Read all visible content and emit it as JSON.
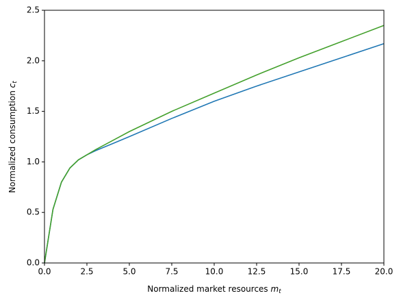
{
  "chart_data": {
    "type": "line",
    "x_label": {
      "text": "Normalized market resources ",
      "var": "m",
      "sub": "t"
    },
    "y_label": {
      "text": "Normalized consumption ",
      "var": "c",
      "sub": "t"
    },
    "x": [
      0,
      0.5,
      1,
      1.5,
      2,
      2.5,
      3,
      4,
      5,
      7.5,
      10,
      12.5,
      15,
      17.5,
      20
    ],
    "series": [
      {
        "color": "#1f77b4",
        "values": [
          0,
          0.53,
          0.8,
          0.94,
          1.02,
          1.07,
          1.11,
          1.18,
          1.25,
          1.43,
          1.6,
          1.75,
          1.89,
          2.03,
          2.17
        ]
      },
      {
        "color": "#43a02c",
        "values": [
          0,
          0.53,
          0.8,
          0.94,
          1.02,
          1.07,
          1.12,
          1.21,
          1.3,
          1.5,
          1.68,
          1.86,
          2.03,
          2.19,
          2.35
        ]
      }
    ],
    "xlim": [
      0,
      20
    ],
    "ylim": [
      0,
      2.5
    ],
    "xticks": [
      {
        "value": 0,
        "label": "0.0"
      },
      {
        "value": 2.5,
        "label": "2.5"
      },
      {
        "value": 5,
        "label": "5.0"
      },
      {
        "value": 7.5,
        "label": "7.5"
      },
      {
        "value": 10,
        "label": "10.0"
      },
      {
        "value": 12.5,
        "label": "12.5"
      },
      {
        "value": 15,
        "label": "15.0"
      },
      {
        "value": 17.5,
        "label": "17.5"
      },
      {
        "value": 20,
        "label": "20.0"
      }
    ],
    "yticks": [
      {
        "value": 0,
        "label": "0.0"
      },
      {
        "value": 0.5,
        "label": "0.5"
      },
      {
        "value": 1,
        "label": "1.0"
      },
      {
        "value": 1.5,
        "label": "1.5"
      },
      {
        "value": 2,
        "label": "2.0"
      },
      {
        "value": 2.5,
        "label": "2.5"
      }
    ],
    "grid": false
  }
}
